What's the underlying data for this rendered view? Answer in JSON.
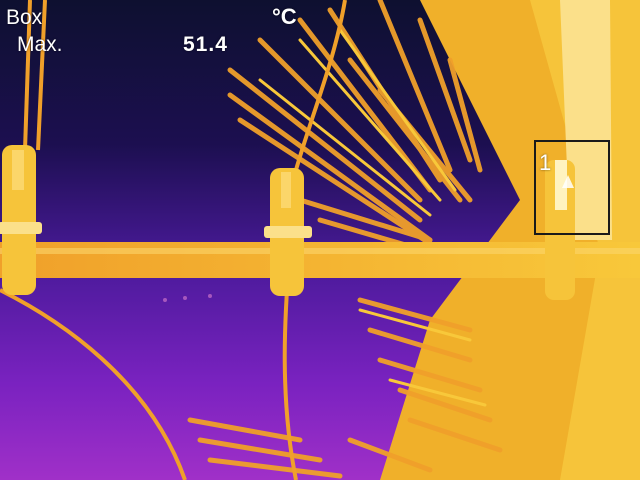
{
  "measurement": {
    "mode_label": "Box",
    "stat_label": "Max.",
    "stat_value": "51.4",
    "unit": "°C"
  },
  "roi": {
    "label": "1"
  },
  "palette": {
    "cold": "#1a0d3a",
    "cool": "#4a1a9a",
    "mid": "#8a2ac8",
    "warm": "#f08a2a",
    "hot": "#f6c32a",
    "hottest": "#fff6c8"
  },
  "icons": [
    "hotspot-marker-icon"
  ]
}
